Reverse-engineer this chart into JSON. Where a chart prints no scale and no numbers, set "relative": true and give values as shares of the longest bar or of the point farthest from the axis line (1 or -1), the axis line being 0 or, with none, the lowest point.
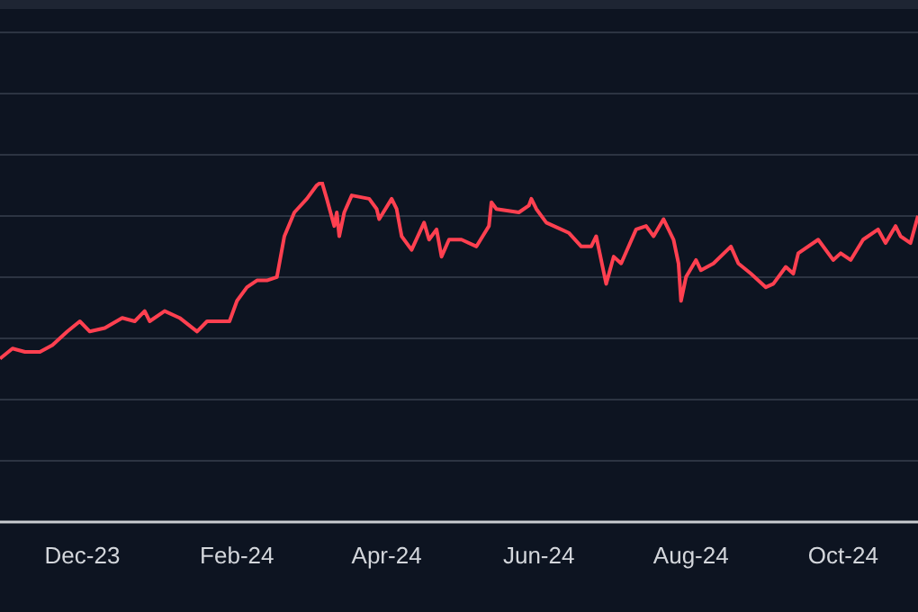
{
  "chart_data": {
    "type": "line",
    "relative": true,
    "grid": "y",
    "marker": "none",
    "line_style": "solid",
    "xlim": [
      "2023-10-29",
      "2024-10-31"
    ],
    "xticks": [
      {
        "value": "2023-12-01",
        "label": "Dec-23"
      },
      {
        "value": "2024-02-01",
        "label": "Feb-24"
      },
      {
        "value": "2024-04-01",
        "label": "Apr-24"
      },
      {
        "value": "2024-06-01",
        "label": "Jun-24"
      },
      {
        "value": "2024-08-01",
        "label": "Aug-24"
      },
      {
        "value": "2024-10-01",
        "label": "Oct-24"
      }
    ],
    "x": [
      "2023-10-29",
      "2023-11-03",
      "2023-11-08",
      "2023-11-14",
      "2023-11-19",
      "2023-11-25",
      "2023-11-30",
      "2023-12-04",
      "2023-12-10",
      "2023-12-17",
      "2023-12-22",
      "2023-12-26",
      "2023-12-28",
      "2024-01-03",
      "2024-01-09",
      "2024-01-16",
      "2024-01-20",
      "2024-01-29",
      "2024-02-01",
      "2024-02-05",
      "2024-02-09",
      "2024-02-13",
      "2024-02-17",
      "2024-02-20",
      "2024-02-24",
      "2024-02-29",
      "2024-03-04",
      "2024-03-06",
      "2024-03-08",
      "2024-03-11",
      "2024-03-12",
      "2024-03-13",
      "2024-03-15",
      "2024-03-18",
      "2024-03-25",
      "2024-03-28",
      "2024-03-29",
      "2024-04-03",
      "2024-04-05",
      "2024-04-07",
      "2024-04-11",
      "2024-04-16",
      "2024-04-18",
      "2024-04-21",
      "2024-04-23",
      "2024-04-26",
      "2024-05-01",
      "2024-05-07",
      "2024-05-12",
      "2024-05-13",
      "2024-05-15",
      "2024-05-24",
      "2024-05-28",
      "2024-05-29",
      "2024-05-31",
      "2024-06-04",
      "2024-06-13",
      "2024-06-18",
      "2024-06-22",
      "2024-06-24",
      "2024-06-28",
      "2024-07-01",
      "2024-07-04",
      "2024-07-10",
      "2024-07-14",
      "2024-07-17",
      "2024-07-21",
      "2024-07-25",
      "2024-07-27",
      "2024-07-28",
      "2024-07-30",
      "2024-08-03",
      "2024-08-05",
      "2024-08-10",
      "2024-08-17",
      "2024-08-20",
      "2024-08-25",
      "2024-08-31",
      "2024-09-03",
      "2024-09-08",
      "2024-09-11",
      "2024-09-13",
      "2024-09-21",
      "2024-09-27",
      "2024-09-30",
      "2024-10-04",
      "2024-10-09",
      "2024-10-15",
      "2024-10-18",
      "2024-10-22",
      "2024-10-24",
      "2024-10-28",
      "2024-10-31"
    ],
    "series": [
      {
        "color": "#ff4050",
        "values": [
          0.48,
          0.51,
          0.5,
          0.5,
          0.52,
          0.56,
          0.59,
          0.56,
          0.57,
          0.6,
          0.59,
          0.62,
          0.59,
          0.62,
          0.6,
          0.56,
          0.59,
          0.59,
          0.65,
          0.69,
          0.71,
          0.71,
          0.72,
          0.84,
          0.91,
          0.95,
          0.99,
          1.0,
          0.95,
          0.87,
          0.91,
          0.84,
          0.91,
          0.96,
          0.95,
          0.92,
          0.89,
          0.95,
          0.92,
          0.84,
          0.8,
          0.88,
          0.83,
          0.86,
          0.78,
          0.83,
          0.83,
          0.81,
          0.87,
          0.94,
          0.92,
          0.91,
          0.93,
          0.95,
          0.92,
          0.88,
          0.85,
          0.81,
          0.81,
          0.84,
          0.7,
          0.78,
          0.76,
          0.86,
          0.87,
          0.84,
          0.89,
          0.83,
          0.76,
          0.65,
          0.72,
          0.77,
          0.74,
          0.76,
          0.81,
          0.76,
          0.73,
          0.69,
          0.7,
          0.75,
          0.73,
          0.79,
          0.83,
          0.77,
          0.79,
          0.77,
          0.83,
          0.86,
          0.82,
          0.87,
          0.84,
          0.82,
          0.9
        ]
      }
    ]
  }
}
